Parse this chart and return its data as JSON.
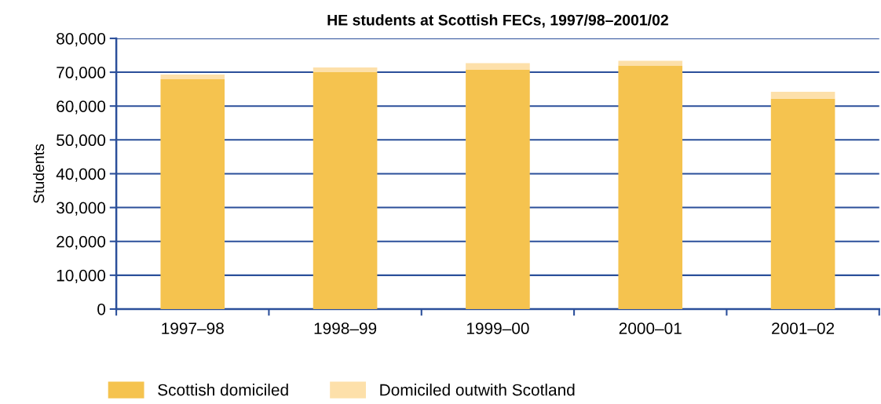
{
  "chart_data": {
    "type": "bar",
    "title": "HE students at Scottish FECs, 1997/98–2001/02",
    "ylabel": "Students",
    "categories": [
      "1997–98",
      "1998–99",
      "1999–00",
      "2000–01",
      "2001–02"
    ],
    "stacked": true,
    "series": [
      {
        "name": "Scottish domiciled",
        "color": "#f5c34f",
        "values": [
          67900,
          70000,
          70700,
          72000,
          62200
        ]
      },
      {
        "name": "Domiciled outwith Scotland",
        "color": "#fde0aa",
        "values": [
          1400,
          1400,
          2000,
          1400,
          2000
        ]
      }
    ],
    "ylim": [
      0,
      80000
    ],
    "yticks": [
      0,
      {
        "value": 10000,
        "label": "10,000"
      },
      {
        "value": 20000,
        "label": "20,000"
      },
      {
        "value": 30000,
        "label": "30,000"
      },
      {
        "value": 40000,
        "label": "40,000"
      },
      {
        "value": 50000,
        "label": "50,000"
      },
      {
        "value": 60000,
        "label": "60,000"
      },
      {
        "value": 70000,
        "label": "70,000"
      },
      {
        "value": 80000,
        "label": "80,000"
      }
    ],
    "grid": "y",
    "legend": "bottom"
  }
}
